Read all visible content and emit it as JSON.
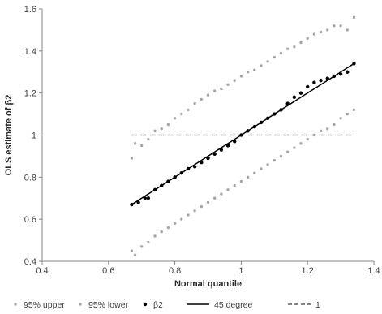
{
  "chart_data": {
    "type": "scatter",
    "title": "",
    "xlabel": "Normal quantile",
    "ylabel": "OLS estimate of β2",
    "xlim": [
      0.4,
      1.4
    ],
    "ylim": [
      0.4,
      1.6
    ],
    "x_ticks": [
      0.4,
      0.6,
      0.8,
      1,
      1.2,
      1.4
    ],
    "y_ticks": [
      0.4,
      0.6,
      0.8,
      1,
      1.2,
      1.4,
      1.6
    ],
    "x_tick_labels": [
      "0.4",
      "0.6",
      "0.8",
      "1",
      "1.2",
      "1.4"
    ],
    "y_tick_labels": [
      "0.4",
      "0.6",
      "0.8",
      "1",
      "1.2",
      "1.4",
      "1.6"
    ],
    "grid": false,
    "legend_position": "bottom",
    "series": [
      {
        "name": "95% upper",
        "kind": "points",
        "color": "#a6a6a6",
        "points": [
          [
            0.67,
            0.89
          ],
          [
            0.68,
            0.96
          ],
          [
            0.7,
            0.95
          ],
          [
            0.72,
            0.98
          ],
          [
            0.74,
            1.02
          ],
          [
            0.76,
            1.03
          ],
          [
            0.78,
            1.05
          ],
          [
            0.8,
            1.08
          ],
          [
            0.82,
            1.1
          ],
          [
            0.84,
            1.12
          ],
          [
            0.86,
            1.15
          ],
          [
            0.88,
            1.17
          ],
          [
            0.9,
            1.19
          ],
          [
            0.92,
            1.21
          ],
          [
            0.94,
            1.22
          ],
          [
            0.96,
            1.24
          ],
          [
            0.98,
            1.26
          ],
          [
            1.0,
            1.28
          ],
          [
            1.02,
            1.3
          ],
          [
            1.04,
            1.31
          ],
          [
            1.06,
            1.33
          ],
          [
            1.08,
            1.35
          ],
          [
            1.1,
            1.37
          ],
          [
            1.12,
            1.39
          ],
          [
            1.14,
            1.41
          ],
          [
            1.16,
            1.42
          ],
          [
            1.18,
            1.44
          ],
          [
            1.2,
            1.46
          ],
          [
            1.22,
            1.48
          ],
          [
            1.24,
            1.49
          ],
          [
            1.26,
            1.5
          ],
          [
            1.28,
            1.52
          ],
          [
            1.3,
            1.52
          ],
          [
            1.32,
            1.5
          ],
          [
            1.34,
            1.56
          ]
        ]
      },
      {
        "name": "95% lower",
        "kind": "points",
        "color": "#a6a6a6",
        "points": [
          [
            0.67,
            0.45
          ],
          [
            0.68,
            0.43
          ],
          [
            0.7,
            0.47
          ],
          [
            0.72,
            0.49
          ],
          [
            0.74,
            0.52
          ],
          [
            0.76,
            0.54
          ],
          [
            0.78,
            0.56
          ],
          [
            0.8,
            0.58
          ],
          [
            0.82,
            0.6
          ],
          [
            0.84,
            0.62
          ],
          [
            0.86,
            0.64
          ],
          [
            0.88,
            0.66
          ],
          [
            0.9,
            0.68
          ],
          [
            0.92,
            0.7
          ],
          [
            0.94,
            0.72
          ],
          [
            0.96,
            0.74
          ],
          [
            0.98,
            0.76
          ],
          [
            1.0,
            0.78
          ],
          [
            1.02,
            0.8
          ],
          [
            1.04,
            0.82
          ],
          [
            1.06,
            0.84
          ],
          [
            1.08,
            0.86
          ],
          [
            1.1,
            0.88
          ],
          [
            1.12,
            0.9
          ],
          [
            1.14,
            0.92
          ],
          [
            1.16,
            0.94
          ],
          [
            1.18,
            0.96
          ],
          [
            1.2,
            0.98
          ],
          [
            1.22,
            1.0
          ],
          [
            1.24,
            1.02
          ],
          [
            1.26,
            1.03
          ],
          [
            1.28,
            1.05
          ],
          [
            1.3,
            1.08
          ],
          [
            1.32,
            1.1
          ],
          [
            1.34,
            1.12
          ]
        ]
      },
      {
        "name": "β2",
        "kind": "points",
        "color": "#000000",
        "points": [
          [
            0.67,
            0.67
          ],
          [
            0.69,
            0.68
          ],
          [
            0.71,
            0.7
          ],
          [
            0.72,
            0.7
          ],
          [
            0.74,
            0.74
          ],
          [
            0.76,
            0.76
          ],
          [
            0.78,
            0.78
          ],
          [
            0.8,
            0.8
          ],
          [
            0.82,
            0.82
          ],
          [
            0.84,
            0.84
          ],
          [
            0.86,
            0.85
          ],
          [
            0.88,
            0.87
          ],
          [
            0.9,
            0.89
          ],
          [
            0.92,
            0.91
          ],
          [
            0.94,
            0.93
          ],
          [
            0.96,
            0.95
          ],
          [
            0.98,
            0.97
          ],
          [
            1.0,
            1.0
          ],
          [
            1.02,
            1.02
          ],
          [
            1.04,
            1.04
          ],
          [
            1.06,
            1.06
          ],
          [
            1.08,
            1.08
          ],
          [
            1.1,
            1.1
          ],
          [
            1.12,
            1.12
          ],
          [
            1.14,
            1.15
          ],
          [
            1.16,
            1.18
          ],
          [
            1.18,
            1.2
          ],
          [
            1.2,
            1.23
          ],
          [
            1.22,
            1.25
          ],
          [
            1.24,
            1.26
          ],
          [
            1.26,
            1.27
          ],
          [
            1.28,
            1.28
          ],
          [
            1.3,
            1.29
          ],
          [
            1.32,
            1.3
          ],
          [
            1.34,
            1.34
          ]
        ]
      },
      {
        "name": "45 degree",
        "kind": "line",
        "color": "#000000",
        "dash": "solid",
        "points": [
          [
            0.67,
            0.67
          ],
          [
            1.34,
            1.34
          ]
        ]
      },
      {
        "name": "1",
        "kind": "line",
        "color": "#595959",
        "dash": "dashed",
        "points": [
          [
            0.67,
            1.0
          ],
          [
            1.34,
            1.0
          ]
        ]
      }
    ]
  }
}
